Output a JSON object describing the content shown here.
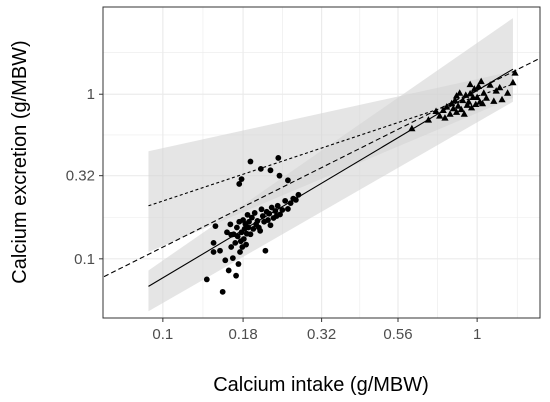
{
  "chart_data": {
    "type": "scatter",
    "title": "",
    "xlabel": "Calcium intake (g/MBW)",
    "ylabel": "Calcium excretion (g/MBW)",
    "x_scale": "log10",
    "y_scale": "log10",
    "xlim": [
      0.0645,
      1.585
    ],
    "ylim": [
      0.0437,
      3.388
    ],
    "x_ticks": [
      {
        "value": 0.1,
        "label": "0.1"
      },
      {
        "value": 0.18,
        "label": "0.18"
      },
      {
        "value": 0.32,
        "label": "0.32"
      },
      {
        "value": 0.56,
        "label": "0.56"
      },
      {
        "value": 1,
        "label": "1"
      }
    ],
    "y_ticks": [
      {
        "value": 0.1,
        "label": "0.1"
      },
      {
        "value": 0.32,
        "label": "0.32"
      },
      {
        "value": 1,
        "label": "1"
      }
    ],
    "grid": true,
    "legend": "none",
    "colors": {
      "panel_border": "#333333",
      "grid": "#ebebeb",
      "ribbon": "#d3d3d3",
      "points": "#000000"
    },
    "series": [
      {
        "marker": "circle",
        "x": [
          0.138,
          0.145,
          0.147,
          0.152,
          0.155,
          0.158,
          0.16,
          0.162,
          0.164,
          0.165,
          0.167,
          0.168,
          0.17,
          0.171,
          0.172,
          0.173,
          0.174,
          0.175,
          0.176,
          0.177,
          0.178,
          0.179,
          0.18,
          0.181,
          0.182,
          0.183,
          0.184,
          0.185,
          0.186,
          0.187,
          0.188,
          0.19,
          0.192,
          0.194,
          0.196,
          0.198,
          0.2,
          0.202,
          0.204,
          0.206,
          0.208,
          0.21,
          0.212,
          0.214,
          0.216,
          0.218,
          0.22,
          0.222,
          0.225,
          0.228,
          0.23,
          0.232,
          0.236,
          0.24,
          0.245,
          0.25,
          0.255,
          0.26,
          0.265,
          0.27,
          0.175,
          0.178,
          0.19,
          0.205,
          0.22,
          0.233,
          0.25,
          0.235,
          0.145,
          0.165
        ],
        "y": [
          0.075,
          0.125,
          0.158,
          0.112,
          0.063,
          0.098,
          0.145,
          0.085,
          0.162,
          0.118,
          0.101,
          0.141,
          0.125,
          0.079,
          0.155,
          0.137,
          0.093,
          0.168,
          0.11,
          0.128,
          0.145,
          0.118,
          0.172,
          0.132,
          0.152,
          0.163,
          0.122,
          0.142,
          0.185,
          0.155,
          0.168,
          0.141,
          0.178,
          0.152,
          0.19,
          0.162,
          0.17,
          0.155,
          0.148,
          0.2,
          0.182,
          0.168,
          0.112,
          0.193,
          0.172,
          0.188,
          0.16,
          0.205,
          0.177,
          0.195,
          0.182,
          0.21,
          0.186,
          0.198,
          0.225,
          0.201,
          0.218,
          0.232,
          0.228,
          0.245,
          0.285,
          0.305,
          0.39,
          0.352,
          0.345,
          0.41,
          0.3,
          0.32,
          0.11,
          0.14
        ]
      },
      {
        "marker": "triangle",
        "x": [
          0.62,
          0.7,
          0.74,
          0.76,
          0.78,
          0.8,
          0.82,
          0.83,
          0.84,
          0.85,
          0.86,
          0.87,
          0.88,
          0.89,
          0.9,
          0.91,
          0.92,
          0.93,
          0.94,
          0.95,
          0.96,
          0.97,
          0.98,
          0.99,
          1.0,
          1.01,
          1.02,
          1.03,
          1.05,
          1.07,
          1.1,
          1.13,
          1.15,
          1.18,
          1.2,
          1.25,
          1.3,
          1.32,
          0.79,
          0.86,
          0.95,
          1.04
        ],
        "y": [
          0.62,
          0.7,
          0.79,
          0.74,
          0.8,
          0.84,
          0.76,
          0.88,
          0.82,
          0.92,
          0.78,
          0.85,
          1.02,
          0.81,
          0.92,
          0.76,
          0.99,
          0.86,
          0.9,
          1.01,
          0.83,
          0.96,
          1.08,
          0.87,
          0.96,
          1.12,
          0.9,
          1.2,
          1.02,
          0.95,
          1.14,
          0.91,
          1.05,
          1.1,
          0.93,
          1.02,
          1.18,
          1.35,
          0.72,
          0.98,
          1.15,
          0.88
        ]
      }
    ],
    "fits": [
      {
        "style": "solid",
        "x": [
          0.09,
          1.3
        ],
        "y": [
          0.068,
          1.42
        ],
        "band_lower": [
          0.048,
          0.9
        ],
        "band_upper": [
          0.085,
          2.9
        ]
      },
      {
        "style": "dotted",
        "x": [
          0.09,
          1.3
        ],
        "y": [
          0.21,
          1.15
        ],
        "band_lower": [
          0.11,
          0.95
        ],
        "band_upper": [
          0.45,
          1.38
        ]
      },
      {
        "style": "dashed",
        "x": [
          0.065,
          1.58
        ],
        "y": [
          0.078,
          1.65
        ]
      }
    ]
  }
}
